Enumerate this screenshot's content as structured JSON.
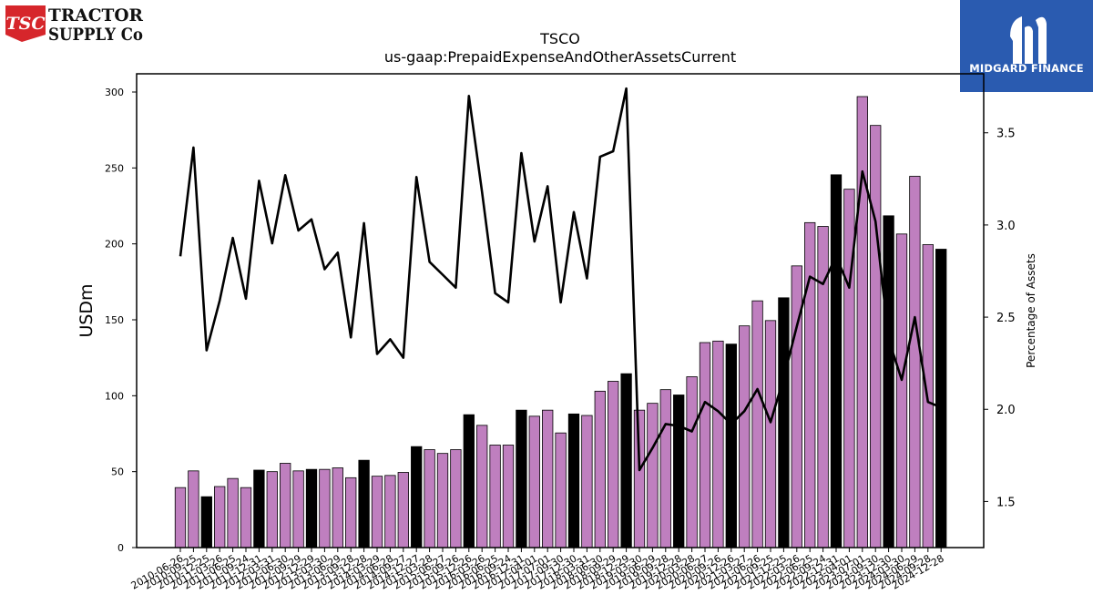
{
  "logos": {
    "left": {
      "badge_text": "TSC",
      "line1": "TRACTOR",
      "line2": "SUPPLY Co",
      "badge_color": "#d6262b"
    },
    "right": {
      "text": "MIDGARD FINANCE",
      "bg_color": "#2a5bb0"
    }
  },
  "chart_data": {
    "type": "bar",
    "title": "TSCO",
    "subtitle": "us-gaap:PrepaidExpenseAndOtherAssetsCurrent",
    "ylabel": "USDm",
    "y2label": "Percentage of Assets",
    "ylim": [
      0,
      312
    ],
    "y2lim": [
      1.25,
      3.82
    ],
    "yticks": [
      0,
      50,
      100,
      150,
      200,
      250,
      300
    ],
    "y2ticks": [
      1.5,
      2.0,
      2.5,
      3.0,
      3.5
    ],
    "colors": {
      "bar": "#bf7fbf",
      "bar_highlight": "#000000",
      "line": "#000000"
    },
    "categories": [
      "2010-06-26",
      "2010-09-25",
      "2010-12-25",
      "2011-03-26",
      "2011-06-25",
      "2011-09-24",
      "2011-12-31",
      "2012-03-31",
      "2012-06-30",
      "2012-09-29",
      "2012-12-29",
      "2013-03-30",
      "2013-06-29",
      "2013-09-28",
      "2013-12-28",
      "2014-03-29",
      "2014-06-28",
      "2014-09-27",
      "2014-12-27",
      "2015-03-28",
      "2015-06-27",
      "2015-09-26",
      "2015-12-26",
      "2016-03-26",
      "2016-06-25",
      "2016-09-24",
      "2016-12-31",
      "2017-04-01",
      "2017-07-01",
      "2017-09-30",
      "2017-12-30",
      "2018-03-31",
      "2018-06-30",
      "2018-09-29",
      "2018-12-29",
      "2019-03-30",
      "2019-06-29",
      "2019-09-28",
      "2019-12-28",
      "2020-03-28",
      "2020-06-27",
      "2020-09-26",
      "2020-12-26",
      "2021-03-27",
      "2021-06-26",
      "2021-09-25",
      "2021-12-25",
      "2022-03-26",
      "2022-06-25",
      "2022-09-24",
      "2022-12-31",
      "2023-04-01",
      "2023-07-01",
      "2023-09-30",
      "2023-12-30",
      "2024-03-30",
      "2024-06-29",
      "2024-09-28",
      "2024-12-28"
    ],
    "values": [
      39.5,
      50.5,
      33.5,
      40.2,
      45.5,
      39.5,
      51.0,
      50.0,
      55.5,
      50.5,
      51.5,
      51.5,
      52.5,
      46.0,
      57.5,
      47.0,
      47.5,
      49.5,
      66.5,
      64.5,
      62.0,
      64.5,
      87.5,
      80.5,
      67.5,
      67.5,
      90.5,
      86.5,
      90.5,
      75.5,
      88.0,
      87.0,
      103.0,
      109.5,
      114.5,
      90.5,
      95.0,
      104.0,
      100.5,
      112.5,
      135.0,
      136.0,
      134.0,
      146.0,
      162.5,
      149.5,
      164.5,
      185.5,
      214.0,
      211.5,
      245.5,
      236.0,
      297.0,
      278.0,
      218.5,
      206.5,
      244.5,
      199.5,
      196.5
    ],
    "highlight": [
      false,
      false,
      true,
      false,
      false,
      false,
      true,
      false,
      false,
      false,
      true,
      false,
      false,
      false,
      true,
      false,
      false,
      false,
      true,
      false,
      false,
      false,
      true,
      false,
      false,
      false,
      true,
      false,
      false,
      false,
      true,
      false,
      false,
      false,
      true,
      false,
      false,
      false,
      true,
      false,
      false,
      false,
      true,
      false,
      false,
      false,
      true,
      false,
      false,
      false,
      true,
      false,
      false,
      false,
      true,
      false,
      false,
      false,
      true
    ],
    "pct_assets": [
      2.83,
      3.42,
      2.32,
      2.59,
      2.93,
      2.6,
      3.24,
      2.9,
      3.27,
      2.97,
      3.03,
      2.76,
      2.85,
      2.39,
      3.01,
      2.3,
      2.38,
      2.28,
      3.26,
      2.8,
      2.73,
      2.66,
      3.7,
      3.18,
      2.63,
      2.58,
      3.39,
      2.91,
      3.21,
      2.58,
      3.07,
      2.71,
      3.37,
      3.4,
      3.74,
      1.67,
      1.79,
      1.92,
      1.91,
      1.88,
      2.04,
      1.99,
      1.92,
      1.99,
      2.11,
      1.93,
      2.17,
      2.45,
      2.72,
      2.68,
      2.83,
      2.66,
      3.29,
      3.02,
      2.38,
      2.16,
      2.5,
      2.04,
      2.01
    ]
  }
}
